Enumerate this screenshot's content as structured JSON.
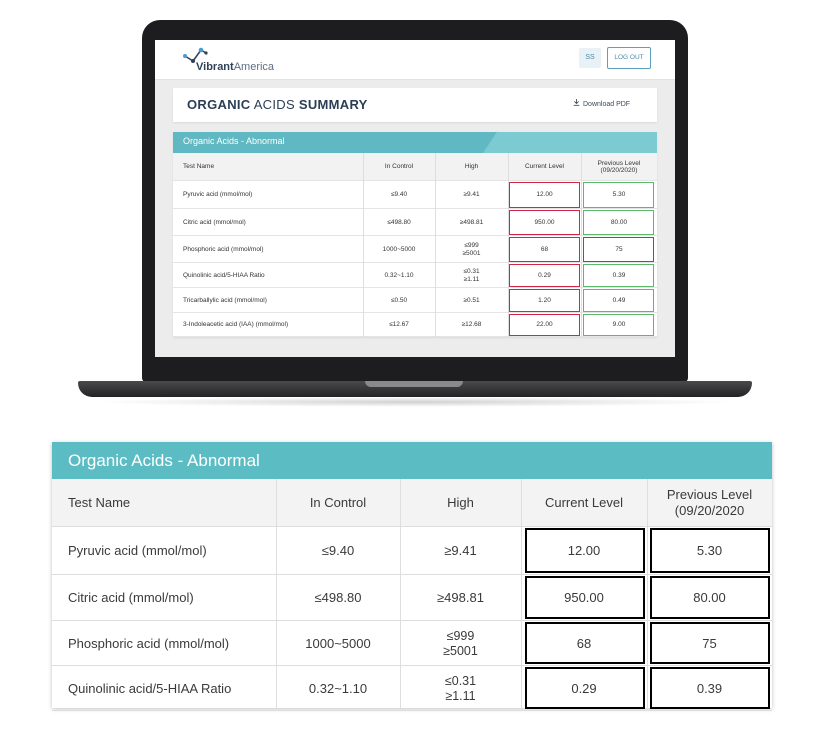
{
  "app": {
    "brand": {
      "name_bold": "Vibrant",
      "name_light": "America",
      "logo_icon": "molecule-logo-icon"
    },
    "header": {
      "user_initials": "SS",
      "logout_label": "LOG OUT"
    },
    "page_title": {
      "bold1": "ORGANIC",
      "light": " ACIDS ",
      "bold2": "SUMMARY"
    },
    "download_label": "Download PDF",
    "download_icon": "download-icon"
  },
  "table": {
    "title": "Organic Acids - Abnormal",
    "columns": [
      "Test Name",
      "In Control",
      "High",
      "Current Level",
      "Previous Level\n(09/20/2020"
    ],
    "columns_small": [
      "Test Name",
      "In Control",
      "High",
      "Current Level",
      "Previous Level\n(09/20/2020)"
    ],
    "rows": [
      {
        "name": "Pyruvic acid (mmol/mol)",
        "in_control": "≤9.40",
        "high": "≥9.41",
        "current": "12.00",
        "previous": "5.30",
        "current_status": "abnormal",
        "previous_status": "normal"
      },
      {
        "name": "Citric acid (mmol/mol)",
        "in_control": "≤498.80",
        "high": "≥498.81",
        "current": "950.00",
        "previous": "80.00",
        "current_status": "abnormal",
        "previous_status": "normal"
      },
      {
        "name": "Phosphoric acid (mmol/mol)",
        "in_control": "1000~5000",
        "high": "≤999\n≥5001",
        "current": "68",
        "previous": "75",
        "current_status": "abnormal",
        "previous_status": "abnormal"
      },
      {
        "name": "Quinolinic acid/5-HIAA Ratio",
        "in_control": "0.32~1.10",
        "high": "≤0.31\n≥1.11",
        "current": "0.29",
        "previous": "0.39",
        "current_status": "abnormal",
        "previous_status": "normal"
      },
      {
        "name": "Tricarballylic acid (mmol/mol)",
        "in_control": "≤0.50",
        "high": "≥0.51",
        "current": "1.20",
        "previous": "0.49",
        "current_status": "abnormal",
        "previous_status": "normal"
      },
      {
        "name": "3-Indoleacetic acid (IAA) (mmol/mol)",
        "in_control": "≤12.67",
        "high": "≥12.68",
        "current": "22.00",
        "previous": "9.00",
        "current_status": "abnormal",
        "previous_status": "normal"
      }
    ]
  },
  "colors": {
    "teal_header": "#5cbcc3",
    "abnormal_border": "#d0264a",
    "normal_border": "#5ab96b",
    "title_text": "#2c3e55"
  }
}
